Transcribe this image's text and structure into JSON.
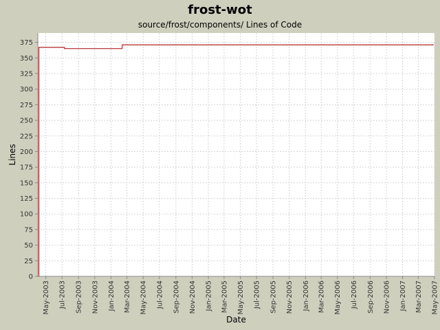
{
  "chart_data": {
    "type": "line",
    "title": "frost-wot",
    "subtitle": "source/frost/components/ Lines of Code",
    "xlabel": "Date",
    "ylabel": "Lines",
    "ylim": [
      0,
      390
    ],
    "xlim": [
      "2003-04-01",
      "2007-05-01"
    ],
    "y_ticks": [
      0,
      25,
      50,
      75,
      100,
      125,
      150,
      175,
      200,
      225,
      250,
      275,
      300,
      325,
      350,
      375
    ],
    "x_ticks": [
      "May-2003",
      "Jul-2003",
      "Sep-2003",
      "Nov-2003",
      "Jan-2004",
      "Mar-2004",
      "May-2004",
      "Jul-2004",
      "Sep-2004",
      "Nov-2004",
      "Jan-2005",
      "Mar-2005",
      "May-2005",
      "Jul-2005",
      "Sep-2005",
      "Nov-2005",
      "Jan-2006",
      "Mar-2006",
      "May-2006",
      "Jul-2006",
      "Sep-2006",
      "Nov-2006",
      "Jan-2007",
      "Mar-2007",
      "May-2007"
    ],
    "grid": true,
    "step": true,
    "series": [
      {
        "color": "#b22222",
        "points": [
          {
            "x": "2003-04-05",
            "y": 0
          },
          {
            "x": "2003-04-05",
            "y": 367
          },
          {
            "x": "2003-07-10",
            "y": 365
          },
          {
            "x": "2004-02-12",
            "y": 371
          },
          {
            "x": "2007-04-28",
            "y": 371
          }
        ]
      }
    ]
  },
  "colors": {
    "background": "#cfcfbe",
    "plot_background": "#ffffff",
    "grid": "#d4d4d4",
    "line": "#b22222"
  }
}
